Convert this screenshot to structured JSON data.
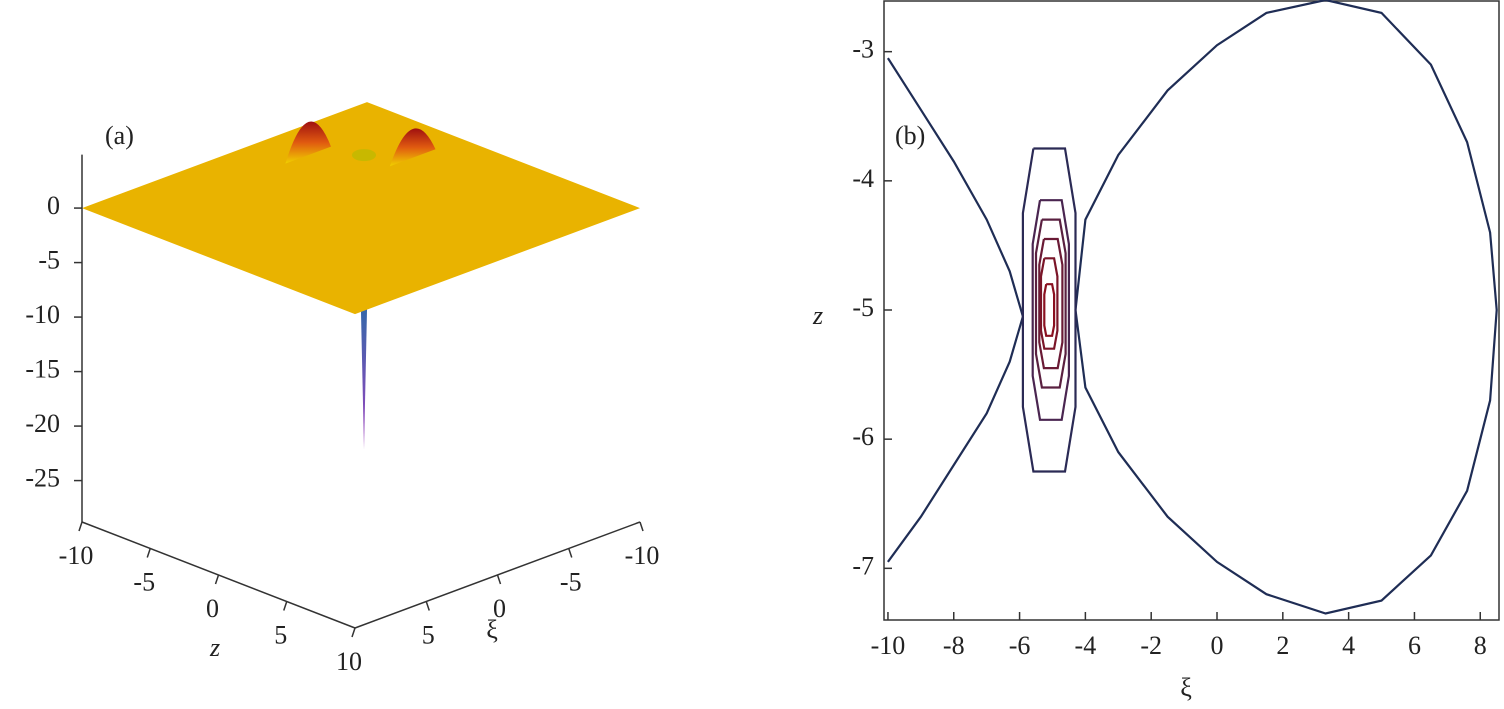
{
  "chart_data": [
    {
      "type": "surface3d",
      "panel_label": "(a)",
      "xlabel": "ξ",
      "ylabel": "z",
      "color": "#e9b300",
      "xlim": [
        -10,
        10
      ],
      "ylim": [
        -10,
        10
      ],
      "zlim": [
        -28.8,
        4.9
      ],
      "xticks": [
        -10,
        -5,
        0,
        5
      ],
      "yticks": [
        -10,
        -5,
        0,
        5,
        10
      ],
      "zticks": [
        0,
        -5,
        -10,
        -15,
        -20,
        -25
      ],
      "extrema": [
        {
          "x": -5,
          "y": -5,
          "value": -27
        },
        {
          "x": -3,
          "y": -7,
          "value": 3.5
        },
        {
          "x": -6.5,
          "y": -3,
          "value": 3
        }
      ]
    },
    {
      "type": "contour",
      "panel_label": "(b)",
      "xlabel": "ξ",
      "ylabel": "z",
      "xlim": [
        -10.12,
        8.6
      ],
      "ylim": [
        -7.4,
        -2.6
      ],
      "xticks": [
        -10,
        -8,
        -6,
        -4,
        -2,
        0,
        2,
        4,
        6,
        8
      ],
      "yticks": [
        -3,
        -4,
        -5,
        -6,
        -7
      ],
      "series": [
        {
          "color": "#1f2d55",
          "x": [
            -4.3,
            -4.0,
            -3.0,
            -1.5,
            0,
            1.5,
            3.3,
            5,
            6.5,
            7.6,
            8.3,
            8.5,
            8.3,
            7.6,
            6.5,
            5,
            3.3,
            1.5,
            0,
            -1.5,
            -3,
            -4,
            -4.3
          ],
          "values": [
            -5.0,
            -4.3,
            -3.8,
            -3.3,
            -2.95,
            -2.7,
            -2.6,
            -2.7,
            -3.1,
            -3.7,
            -4.4,
            -5.0,
            -5.7,
            -6.4,
            -6.9,
            -7.25,
            -7.35,
            -7.2,
            -6.95,
            -6.6,
            -6.1,
            -5.6,
            -5.0
          ]
        },
        {
          "color": "#1f2d55",
          "x": [
            -10,
            -9,
            -8,
            -7,
            -6.3,
            -5.9,
            -6.3,
            -7,
            -8,
            -9,
            -10
          ],
          "values": [
            -3.05,
            -3.45,
            -3.85,
            -4.3,
            -4.7,
            -5.05,
            -5.4,
            -5.8,
            -6.2,
            -6.6,
            -6.95
          ]
        },
        {
          "color": "#2b2a55",
          "x": [
            -5.58,
            -4.62,
            -4.3,
            -4.3,
            -4.62,
            -5.58,
            -5.9,
            -5.9,
            -5.58
          ],
          "values": [
            -3.75,
            -3.75,
            -4.25,
            -5.75,
            -6.25,
            -6.25,
            -5.75,
            -4.25,
            -3.75
          ]
        },
        {
          "color": "#4a2550",
          "x": [
            -5.38,
            -4.72,
            -4.5,
            -4.5,
            -4.72,
            -5.38,
            -5.6,
            -5.6,
            -5.38
          ],
          "values": [
            -4.15,
            -4.15,
            -4.49,
            -5.51,
            -5.85,
            -5.85,
            -5.51,
            -4.49,
            -4.15
          ]
        },
        {
          "color": "#5a2040",
          "x": [
            -5.32,
            -4.78,
            -4.6,
            -4.6,
            -4.78,
            -5.32,
            -5.5,
            -5.5,
            -5.32
          ],
          "values": [
            -4.3,
            -4.3,
            -4.56,
            -5.34,
            -5.6,
            -5.6,
            -5.34,
            -4.56,
            -4.3
          ]
        },
        {
          "color": "#6a1a35",
          "x": [
            -5.26,
            -4.84,
            -4.7,
            -4.7,
            -4.84,
            -5.26,
            -5.4,
            -5.4,
            -5.26
          ],
          "values": [
            -4.45,
            -4.45,
            -4.65,
            -5.25,
            -5.45,
            -5.45,
            -5.25,
            -4.65,
            -4.45
          ]
        },
        {
          "color": "#7a1528",
          "x": [
            -5.25,
            -4.95,
            -4.85,
            -4.85,
            -4.95,
            -5.25,
            -5.35,
            -5.35,
            -5.25
          ],
          "values": [
            -4.6,
            -4.6,
            -4.74,
            -5.16,
            -5.3,
            -5.3,
            -5.16,
            -4.74,
            -4.6
          ]
        },
        {
          "color": "#8a1020",
          "x": [
            -5.19,
            -5.01,
            -4.95,
            -4.95,
            -5.01,
            -5.19,
            -5.25,
            -5.25,
            -5.19
          ],
          "values": [
            -4.8,
            -4.8,
            -4.88,
            -5.12,
            -5.2,
            -5.2,
            -5.12,
            -4.88,
            -4.8
          ]
        }
      ]
    }
  ]
}
